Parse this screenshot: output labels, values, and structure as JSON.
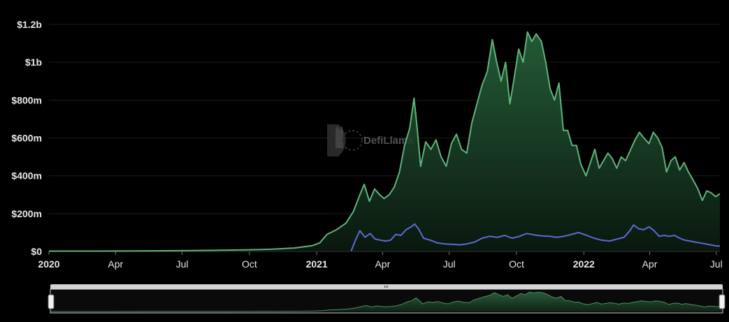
{
  "watermark": {
    "text": "DefiLlama"
  },
  "chart_data": {
    "type": "area",
    "xlabel": "",
    "ylabel": "",
    "ylim": [
      0,
      1200
    ],
    "yticks": [
      {
        "value": 0,
        "label": "$0"
      },
      {
        "value": 200,
        "label": "$200m"
      },
      {
        "value": 400,
        "label": "$400m"
      },
      {
        "value": 600,
        "label": "$600m"
      },
      {
        "value": 800,
        "label": "$800m"
      },
      {
        "value": 1000,
        "label": "$1b"
      },
      {
        "value": 1200,
        "label": "$1.2b"
      }
    ],
    "xrange": [
      "2020-01-01",
      "2022-07-06"
    ],
    "xticks": [
      {
        "date": "2020-01-01",
        "label": "2020",
        "major": true
      },
      {
        "date": "2020-04-01",
        "label": "Apr",
        "major": false
      },
      {
        "date": "2020-07-01",
        "label": "Jul",
        "major": false
      },
      {
        "date": "2020-10-01",
        "label": "Oct",
        "major": false
      },
      {
        "date": "2021-01-01",
        "label": "2021",
        "major": true
      },
      {
        "date": "2021-04-01",
        "label": "Apr",
        "major": false
      },
      {
        "date": "2021-07-01",
        "label": "Jul",
        "major": false
      },
      {
        "date": "2021-10-01",
        "label": "Oct",
        "major": false
      },
      {
        "date": "2022-01-01",
        "label": "2022",
        "major": true
      },
      {
        "date": "2022-04-01",
        "label": "Apr",
        "major": false
      },
      {
        "date": "2022-07-01",
        "label": "Jul",
        "major": false
      }
    ],
    "colors": {
      "green": "#5fb37a",
      "blue": "#5b6bd1",
      "grid": "#1c1c1c",
      "text": "#e6e6e6"
    },
    "series": [
      {
        "color": "#5fb37a",
        "area": true,
        "points": [
          [
            "2020-01-01",
            2
          ],
          [
            "2020-03-01",
            2
          ],
          [
            "2020-05-01",
            3
          ],
          [
            "2020-07-01",
            4
          ],
          [
            "2020-08-15",
            6
          ],
          [
            "2020-10-01",
            9
          ],
          [
            "2020-11-01",
            12
          ],
          [
            "2020-12-01",
            18
          ],
          [
            "2020-12-25",
            30
          ],
          [
            "2021-01-05",
            45
          ],
          [
            "2021-01-15",
            90
          ],
          [
            "2021-01-28",
            115
          ],
          [
            "2021-02-10",
            150
          ],
          [
            "2021-02-20",
            210
          ],
          [
            "2021-03-01",
            300
          ],
          [
            "2021-03-07",
            355
          ],
          [
            "2021-03-14",
            265
          ],
          [
            "2021-03-21",
            330
          ],
          [
            "2021-03-28",
            300
          ],
          [
            "2021-04-03",
            280
          ],
          [
            "2021-04-10",
            300
          ],
          [
            "2021-04-17",
            340
          ],
          [
            "2021-04-24",
            420
          ],
          [
            "2021-05-01",
            560
          ],
          [
            "2021-05-08",
            650
          ],
          [
            "2021-05-14",
            810
          ],
          [
            "2021-05-18",
            660
          ],
          [
            "2021-05-23",
            450
          ],
          [
            "2021-05-30",
            580
          ],
          [
            "2021-06-06",
            540
          ],
          [
            "2021-06-13",
            590
          ],
          [
            "2021-06-20",
            500
          ],
          [
            "2021-06-27",
            450
          ],
          [
            "2021-07-04",
            570
          ],
          [
            "2021-07-11",
            620
          ],
          [
            "2021-07-18",
            540
          ],
          [
            "2021-07-25",
            520
          ],
          [
            "2021-08-01",
            680
          ],
          [
            "2021-08-08",
            780
          ],
          [
            "2021-08-15",
            880
          ],
          [
            "2021-08-22",
            950
          ],
          [
            "2021-08-29",
            1120
          ],
          [
            "2021-09-04",
            1000
          ],
          [
            "2021-09-10",
            900
          ],
          [
            "2021-09-16",
            1000
          ],
          [
            "2021-09-22",
            780
          ],
          [
            "2021-09-28",
            920
          ],
          [
            "2021-10-04",
            1070
          ],
          [
            "2021-10-10",
            1000
          ],
          [
            "2021-10-16",
            1160
          ],
          [
            "2021-10-22",
            1110
          ],
          [
            "2021-10-28",
            1150
          ],
          [
            "2021-11-04",
            1110
          ],
          [
            "2021-11-10",
            1000
          ],
          [
            "2021-11-16",
            860
          ],
          [
            "2021-11-22",
            800
          ],
          [
            "2021-11-28",
            890
          ],
          [
            "2021-12-04",
            640
          ],
          [
            "2021-12-10",
            640
          ],
          [
            "2021-12-16",
            560
          ],
          [
            "2021-12-22",
            560
          ],
          [
            "2021-12-28",
            460
          ],
          [
            "2022-01-04",
            400
          ],
          [
            "2022-01-10",
            470
          ],
          [
            "2022-01-16",
            540
          ],
          [
            "2022-01-22",
            440
          ],
          [
            "2022-01-28",
            480
          ],
          [
            "2022-02-03",
            520
          ],
          [
            "2022-02-09",
            490
          ],
          [
            "2022-02-15",
            440
          ],
          [
            "2022-02-21",
            500
          ],
          [
            "2022-02-27",
            480
          ],
          [
            "2022-03-05",
            530
          ],
          [
            "2022-03-12",
            590
          ],
          [
            "2022-03-18",
            630
          ],
          [
            "2022-03-24",
            600
          ],
          [
            "2022-03-31",
            570
          ],
          [
            "2022-04-06",
            630
          ],
          [
            "2022-04-12",
            600
          ],
          [
            "2022-04-18",
            550
          ],
          [
            "2022-04-24",
            420
          ],
          [
            "2022-04-30",
            480
          ],
          [
            "2022-05-06",
            500
          ],
          [
            "2022-05-12",
            430
          ],
          [
            "2022-05-18",
            470
          ],
          [
            "2022-05-24",
            420
          ],
          [
            "2022-05-30",
            380
          ],
          [
            "2022-06-06",
            330
          ],
          [
            "2022-06-12",
            270
          ],
          [
            "2022-06-18",
            320
          ],
          [
            "2022-06-24",
            310
          ],
          [
            "2022-06-30",
            290
          ],
          [
            "2022-07-06",
            305
          ]
        ]
      },
      {
        "color": "#5b6bd1",
        "area": false,
        "points": [
          [
            "2021-02-17",
            2
          ],
          [
            "2021-02-23",
            60
          ],
          [
            "2021-03-01",
            110
          ],
          [
            "2021-03-08",
            75
          ],
          [
            "2021-03-15",
            95
          ],
          [
            "2021-03-22",
            65
          ],
          [
            "2021-03-29",
            60
          ],
          [
            "2021-04-05",
            55
          ],
          [
            "2021-04-12",
            60
          ],
          [
            "2021-04-19",
            90
          ],
          [
            "2021-04-26",
            85
          ],
          [
            "2021-05-03",
            115
          ],
          [
            "2021-05-10",
            130
          ],
          [
            "2021-05-15",
            145
          ],
          [
            "2021-05-20",
            120
          ],
          [
            "2021-05-27",
            70
          ],
          [
            "2021-06-05",
            60
          ],
          [
            "2021-06-15",
            45
          ],
          [
            "2021-06-25",
            40
          ],
          [
            "2021-07-05",
            38
          ],
          [
            "2021-07-15",
            35
          ],
          [
            "2021-07-25",
            40
          ],
          [
            "2021-08-05",
            50
          ],
          [
            "2021-08-15",
            70
          ],
          [
            "2021-08-25",
            80
          ],
          [
            "2021-09-05",
            75
          ],
          [
            "2021-09-15",
            85
          ],
          [
            "2021-09-25",
            70
          ],
          [
            "2021-10-05",
            80
          ],
          [
            "2021-10-15",
            95
          ],
          [
            "2021-10-25",
            88
          ],
          [
            "2021-11-05",
            82
          ],
          [
            "2021-11-15",
            80
          ],
          [
            "2021-11-25",
            75
          ],
          [
            "2021-12-05",
            80
          ],
          [
            "2021-12-15",
            90
          ],
          [
            "2021-12-25",
            100
          ],
          [
            "2022-01-05",
            85
          ],
          [
            "2022-01-15",
            70
          ],
          [
            "2022-01-25",
            60
          ],
          [
            "2022-02-05",
            55
          ],
          [
            "2022-02-15",
            65
          ],
          [
            "2022-02-25",
            75
          ],
          [
            "2022-03-05",
            110
          ],
          [
            "2022-03-10",
            140
          ],
          [
            "2022-03-17",
            120
          ],
          [
            "2022-03-24",
            115
          ],
          [
            "2022-03-31",
            130
          ],
          [
            "2022-04-07",
            110
          ],
          [
            "2022-04-14",
            80
          ],
          [
            "2022-04-21",
            85
          ],
          [
            "2022-04-28",
            80
          ],
          [
            "2022-05-05",
            85
          ],
          [
            "2022-05-12",
            70
          ],
          [
            "2022-05-19",
            60
          ],
          [
            "2022-05-26",
            55
          ],
          [
            "2022-06-02",
            50
          ],
          [
            "2022-06-09",
            45
          ],
          [
            "2022-06-16",
            40
          ],
          [
            "2022-06-23",
            35
          ],
          [
            "2022-06-30",
            30
          ],
          [
            "2022-07-06",
            28
          ]
        ]
      }
    ]
  }
}
